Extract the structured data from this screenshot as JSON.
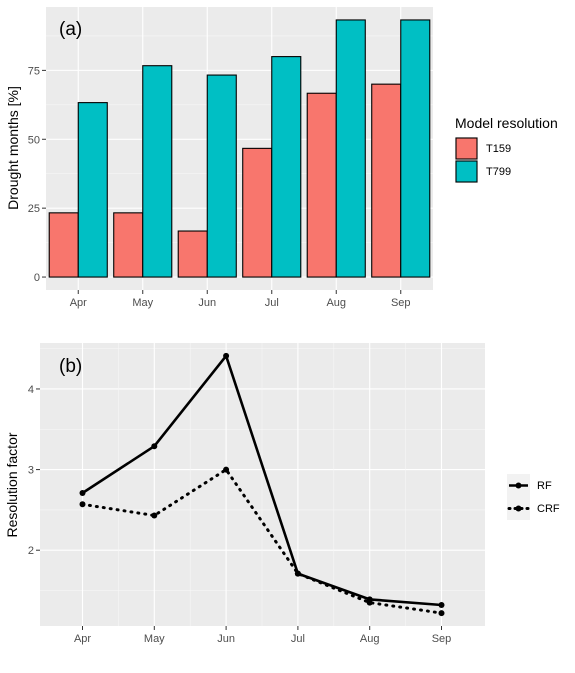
{
  "chart_data": [
    {
      "type": "bar",
      "panel_label": "(a)",
      "categories": [
        "Apr",
        "May",
        "Jun",
        "Jul",
        "Aug",
        "Sep"
      ],
      "series": [
        {
          "name": "T159",
          "color": "#F8766D",
          "values": [
            23.3,
            23.3,
            16.7,
            46.7,
            66.7,
            70.0
          ]
        },
        {
          "name": "T799",
          "color": "#00BFC4",
          "values": [
            63.3,
            76.7,
            73.3,
            80.0,
            93.3,
            93.3
          ]
        }
      ],
      "xlabel": "",
      "ylabel": "Drought months [%]",
      "ylim": [
        -4.7,
        98.0
      ],
      "yticks": [
        0,
        25,
        50,
        75
      ],
      "legend": {
        "title": "Model resolution",
        "position": "right"
      },
      "grid": true
    },
    {
      "type": "line",
      "panel_label": "(b)",
      "categories": [
        "Apr",
        "May",
        "Jun",
        "Jul",
        "Aug",
        "Sep"
      ],
      "series": [
        {
          "name": "RF",
          "style": "solid",
          "values": [
            2.71,
            3.29,
            4.41,
            1.71,
            1.39,
            1.32
          ]
        },
        {
          "name": "CRF",
          "style": "dotted",
          "values": [
            2.57,
            2.43,
            3.0,
            1.71,
            1.35,
            1.22
          ]
        }
      ],
      "xlabel": "",
      "ylabel": "Resolution factor",
      "ylim": [
        1.06,
        4.57
      ],
      "yticks": [
        2,
        3,
        4
      ],
      "legend": {
        "title": "",
        "position": "right"
      },
      "grid": true
    }
  ]
}
